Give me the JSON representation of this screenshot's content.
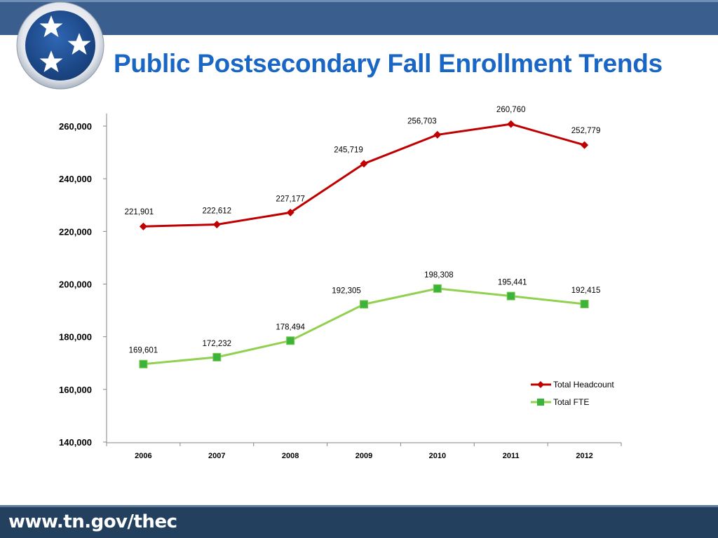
{
  "slide": {
    "title": "Public Postsecondary Fall Enrollment Trends",
    "footer_url": "www.tn.gov/thec",
    "logo_icon": "tennessee-tristar-icon",
    "colors": {
      "band": "#3a5f8e",
      "footer": "#24405f",
      "title": "#1a66c4"
    }
  },
  "chart_data": {
    "type": "line",
    "categories": [
      "2006",
      "2007",
      "2008",
      "2009",
      "2010",
      "2011",
      "2012"
    ],
    "ylim": [
      140000,
      260000
    ],
    "yticks": [
      140000,
      160000,
      180000,
      200000,
      220000,
      240000,
      260000
    ],
    "ytick_labels": [
      "140,000",
      "160,000",
      "180,000",
      "200,000",
      "220,000",
      "240,000",
      "260,000"
    ],
    "grid": false,
    "legend_position": "right",
    "series": [
      {
        "name": "Total Headcount",
        "values": [
          221901,
          222612,
          227177,
          245719,
          256703,
          260760,
          252779
        ],
        "labels": [
          "221,901",
          "222,612",
          "227,177",
          "245,719",
          "256,703",
          "260,760",
          "252,779"
        ],
        "color": "#c00000",
        "marker": "diamond"
      },
      {
        "name": "Total FTE",
        "values": [
          169601,
          172232,
          178494,
          192305,
          198308,
          195441,
          192415
        ],
        "labels": [
          "169,601",
          "172,232",
          "178,494",
          "192,305",
          "198,308",
          "195,441",
          "192,415"
        ],
        "color": "#92d050",
        "marker_color": "#3cb43c",
        "marker": "square"
      }
    ]
  }
}
